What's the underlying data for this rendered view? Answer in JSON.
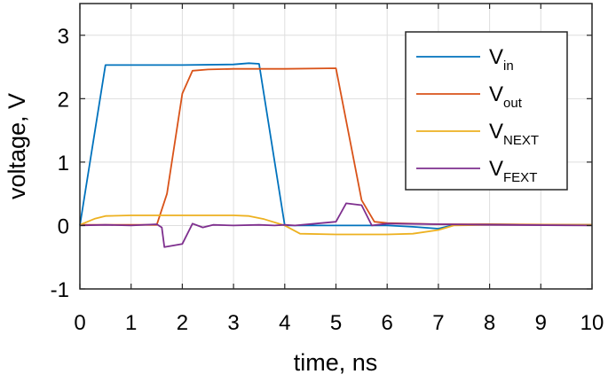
{
  "chart_data": {
    "type": "line",
    "xlabel": "time, ns",
    "ylabel": "voltage, V",
    "xlim": [
      0,
      10
    ],
    "ylim": [
      -1,
      3.5
    ],
    "xticks": [
      0,
      1,
      2,
      3,
      4,
      5,
      6,
      7,
      8,
      9,
      10
    ],
    "yticks": [
      -1,
      0,
      1,
      2,
      3
    ],
    "grid": true,
    "legend_position": "top-right",
    "series": [
      {
        "name": "V",
        "subscript": "in",
        "color": "#0072BD",
        "points": [
          [
            0,
            0
          ],
          [
            0.5,
            2.53
          ],
          [
            1.0,
            2.53
          ],
          [
            2.0,
            2.53
          ],
          [
            3.0,
            2.54
          ],
          [
            3.3,
            2.56
          ],
          [
            3.5,
            2.55
          ],
          [
            4.0,
            0.0
          ],
          [
            5.0,
            0.0
          ],
          [
            6.0,
            0.0
          ],
          [
            6.5,
            -0.02
          ],
          [
            7.0,
            -0.05
          ],
          [
            7.3,
            0.01
          ],
          [
            8.0,
            0.02
          ],
          [
            9.0,
            0.01
          ],
          [
            10.0,
            0.01
          ]
        ]
      },
      {
        "name": "V",
        "subscript": "out",
        "color": "#D95319",
        "points": [
          [
            0,
            0.01
          ],
          [
            1.5,
            0.01
          ],
          [
            1.7,
            0.5
          ],
          [
            2.0,
            2.08
          ],
          [
            2.2,
            2.44
          ],
          [
            2.5,
            2.46
          ],
          [
            3.0,
            2.47
          ],
          [
            4.0,
            2.47
          ],
          [
            5.0,
            2.48
          ],
          [
            5.5,
            0.4
          ],
          [
            5.75,
            0.06
          ],
          [
            6.0,
            0.04
          ],
          [
            7.0,
            0.02
          ],
          [
            8.0,
            0.02
          ],
          [
            10.0,
            0.01
          ]
        ]
      },
      {
        "name": "V",
        "subscript": "NEXT",
        "color": "#EDB120",
        "points": [
          [
            0,
            0.01
          ],
          [
            0.3,
            0.11
          ],
          [
            0.5,
            0.15
          ],
          [
            1.0,
            0.16
          ],
          [
            2.0,
            0.16
          ],
          [
            3.0,
            0.16
          ],
          [
            3.3,
            0.15
          ],
          [
            3.6,
            0.1
          ],
          [
            4.0,
            0.0
          ],
          [
            4.3,
            -0.13
          ],
          [
            5.0,
            -0.14
          ],
          [
            6.0,
            -0.14
          ],
          [
            6.5,
            -0.13
          ],
          [
            7.0,
            -0.07
          ],
          [
            7.3,
            0.0
          ],
          [
            8.0,
            0.01
          ],
          [
            10.0,
            0.01
          ]
        ]
      },
      {
        "name": "V",
        "subscript": "FEXT",
        "color": "#7E2F8E",
        "points": [
          [
            0,
            0.0
          ],
          [
            0.5,
            0.01
          ],
          [
            1.0,
            0.0
          ],
          [
            1.5,
            0.02
          ],
          [
            1.6,
            -0.03
          ],
          [
            1.65,
            -0.34
          ],
          [
            2.0,
            -0.29
          ],
          [
            2.2,
            0.03
          ],
          [
            2.4,
            -0.03
          ],
          [
            2.6,
            0.01
          ],
          [
            3.0,
            0.0
          ],
          [
            3.5,
            0.01
          ],
          [
            3.8,
            0.0
          ],
          [
            4.0,
            0.01
          ],
          [
            4.2,
            0.0
          ],
          [
            4.6,
            0.03
          ],
          [
            5.0,
            0.06
          ],
          [
            5.2,
            0.35
          ],
          [
            5.5,
            0.32
          ],
          [
            5.7,
            0.0
          ],
          [
            6.0,
            0.03
          ],
          [
            7.0,
            0.02
          ],
          [
            8.0,
            0.01
          ],
          [
            10.0,
            0.0
          ]
        ]
      }
    ]
  }
}
